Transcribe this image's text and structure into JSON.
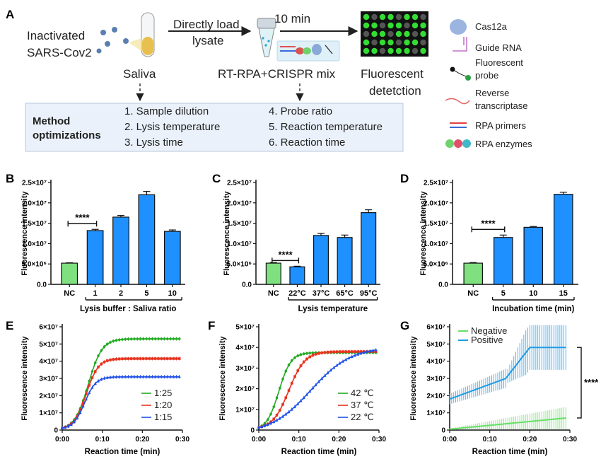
{
  "colors": {
    "bar_nc": "#7fe07f",
    "bar_blue": "#1e90ff",
    "green": "#22aa22",
    "red": "#e8321e",
    "blue": "#1e50e6",
    "neg": "#66e066",
    "pos": "#1e9be8",
    "method_box": "#eaf1fa"
  },
  "panel_a": {
    "letter": "A",
    "inactivated_1": "Inactivated",
    "inactivated_2": "SARS-Cov2",
    "saliva": "Saliva",
    "directly_1": "Directly load",
    "directly_2": "lysate",
    "ten_min": "10 min",
    "mix": "RT-RPA+CRISPR mix",
    "fluor_1": "Fluorescent",
    "fluor_2": "detetction",
    "method_1": "Method",
    "method_2": "optimizations",
    "methods": [
      "1. Sample dilution",
      "2. Lysis temperature",
      "3. Lysis time",
      "4. Probe ratio",
      "5. Reaction temperature",
      "6. Reaction time"
    ],
    "legend": [
      "Cas12a",
      "Guide RNA",
      "Fluorescent",
      "probe",
      "Reverse",
      "transcriptase",
      "RPA primers",
      "RPA enzymes"
    ]
  },
  "chart_data": [
    {
      "panel": "B",
      "type": "bar",
      "categories": [
        "NC",
        "1",
        "2",
        "5",
        "10"
      ],
      "values": [
        5200000.0,
        13200000.0,
        16500000.0,
        22000000.0,
        13000000.0
      ],
      "errors": [
        100000.0,
        300000.0,
        400000.0,
        800000.0,
        350000.0
      ],
      "ylabel": "Fluorescence intensity",
      "xlabel": "Lysis buffer : Saliva ratio",
      "yticks": [
        "0.0",
        "5.0×10⁶",
        "1.0×10⁷",
        "1.5×10⁷",
        "2.0×10⁷",
        "2.5×10⁷"
      ],
      "ylim": [
        0,
        25000000.0
      ],
      "significance": "****"
    },
    {
      "panel": "C",
      "type": "bar",
      "categories": [
        "NC",
        "22°C",
        "37°C",
        "65°C",
        "95°C"
      ],
      "values": [
        5200000.0,
        4300000.0,
        12000000.0,
        11500000.0,
        17600000.0
      ],
      "errors": [
        150000.0,
        150000.0,
        500000.0,
        600000.0,
        700000.0
      ],
      "ylabel": "Fluorescence intensity",
      "xlabel": "Lysis temperature",
      "yticks": [
        "0.0",
        "5.0×10⁶",
        "1.0×10⁷",
        "1.5×10⁷",
        "2.0×10⁷",
        "2.5×10⁷"
      ],
      "ylim": [
        0,
        25000000.0
      ],
      "significance": "****"
    },
    {
      "panel": "D",
      "type": "bar",
      "categories": [
        "NC",
        "5",
        "10",
        "15"
      ],
      "values": [
        5200000.0,
        11500000.0,
        14000000.0,
        22100000.0
      ],
      "errors": [
        150000.0,
        600000.0,
        200000.0,
        500000.0
      ],
      "ylabel": "Fluorescence intensity",
      "xlabel": "Incubation time (min)",
      "yticks": [
        "0.0",
        "5.0×10⁶",
        "1.0×10⁷",
        "1.5×10⁷",
        "2.0×10⁷",
        "2.5×10⁷"
      ],
      "ylim": [
        0,
        25000000.0
      ],
      "significance": "****"
    },
    {
      "panel": "E",
      "type": "line",
      "xlabel": "Reaction time (min)",
      "ylabel": "Fluorescence intensity",
      "xticks": [
        "0:00",
        "0:10",
        "0:20",
        "0:30"
      ],
      "yticks": [
        "0",
        "1×10⁷",
        "2×10⁷",
        "3×10⁷",
        "4×10⁷",
        "5×10⁷",
        "6×10⁷"
      ],
      "xlim": [
        0,
        30
      ],
      "ylim": [
        0,
        60000000.0
      ],
      "series": [
        {
          "name": "1:25",
          "final": 53000000.0,
          "rise_mid": 6.5,
          "rise_width": 1.7
        },
        {
          "name": "1:20",
          "final": 41500000.0,
          "rise_mid": 6.0,
          "rise_width": 1.5
        },
        {
          "name": "1:15",
          "final": 31000000.0,
          "rise_mid": 5.6,
          "rise_width": 1.4
        }
      ]
    },
    {
      "panel": "F",
      "type": "line",
      "xlabel": "Reaction time (min)",
      "ylabel": "Fluorescence intensity",
      "xticks": [
        "0:00",
        "0:10",
        "0:20",
        "0:30"
      ],
      "yticks": [
        "0",
        "1×10⁷",
        "2×10⁷",
        "3×10⁷",
        "4×10⁷",
        "5×10⁷"
      ],
      "xlim": [
        0,
        30
      ],
      "ylim": [
        0,
        50000000.0
      ],
      "series": [
        {
          "name": "42 ℃",
          "final": 37500000.0,
          "rise_mid": 5.0,
          "rise_width": 1.5
        },
        {
          "name": "37 ℃",
          "final": 38000000.0,
          "rise_mid": 7.5,
          "rise_width": 2.0
        },
        {
          "name": "22 ℃",
          "final": 39000000.0,
          "rise_mid": 13.0,
          "rise_width": 5.0
        }
      ]
    },
    {
      "panel": "G",
      "type": "line",
      "xlabel": "Reaction time (min)",
      "ylabel": "Fluorescence intensity",
      "xticks": [
        "0:00",
        "0:10",
        "0:20",
        "0:30"
      ],
      "yticks": [
        "0",
        "1×10⁷",
        "2×10⁷",
        "3×10⁷",
        "4×10⁷",
        "5×10⁷",
        "6×10⁷"
      ],
      "xlim": [
        0,
        30
      ],
      "ylim": [
        0,
        60000000.0
      ],
      "series": [
        {
          "name": "Negative",
          "start": 500000.0,
          "end": 7000000.0,
          "err_end": 6000000.0
        },
        {
          "name": "Positive",
          "start": 18000000.0,
          "end": 48000000.0,
          "err_end": 10000000.0
        }
      ],
      "significance": "****"
    }
  ]
}
